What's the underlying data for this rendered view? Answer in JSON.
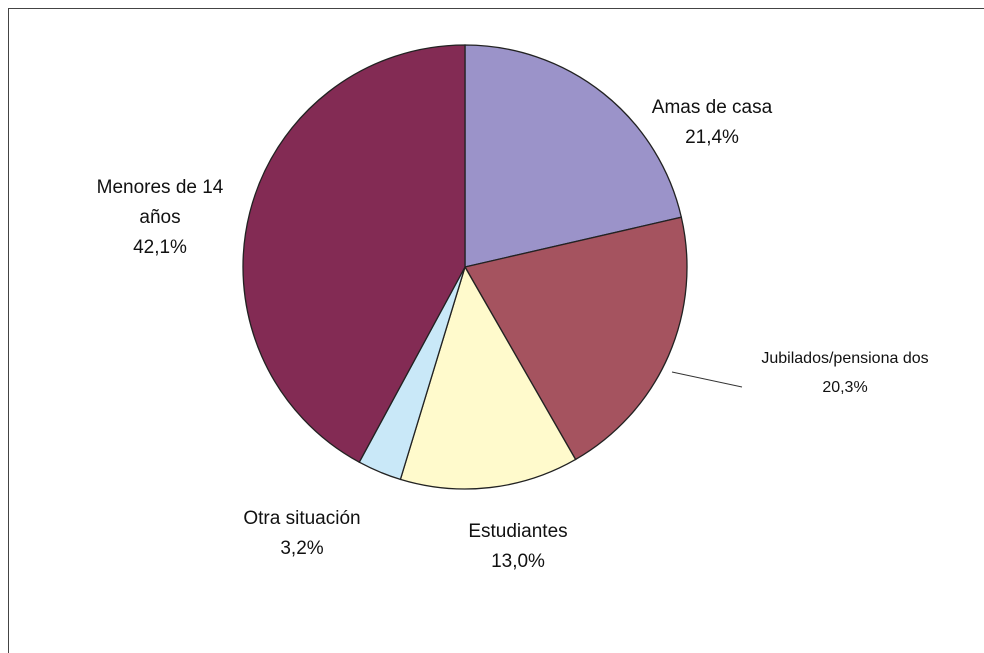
{
  "chart_data": {
    "type": "pie",
    "categories": [
      "Amas de casa",
      "Jubilados/pensiona dos",
      "Estudiantes",
      "Otra situación",
      "Menores de 14 años"
    ],
    "values": [
      21.4,
      20.3,
      13.0,
      3.2,
      42.1
    ],
    "value_labels": [
      "21,4%",
      "20,3%",
      "13,0%",
      "3,2%",
      "42,1%"
    ],
    "colors": [
      "#9b93c9",
      "#a5535f",
      "#fffacc",
      "#c9e8f8",
      "#832b54"
    ]
  }
}
